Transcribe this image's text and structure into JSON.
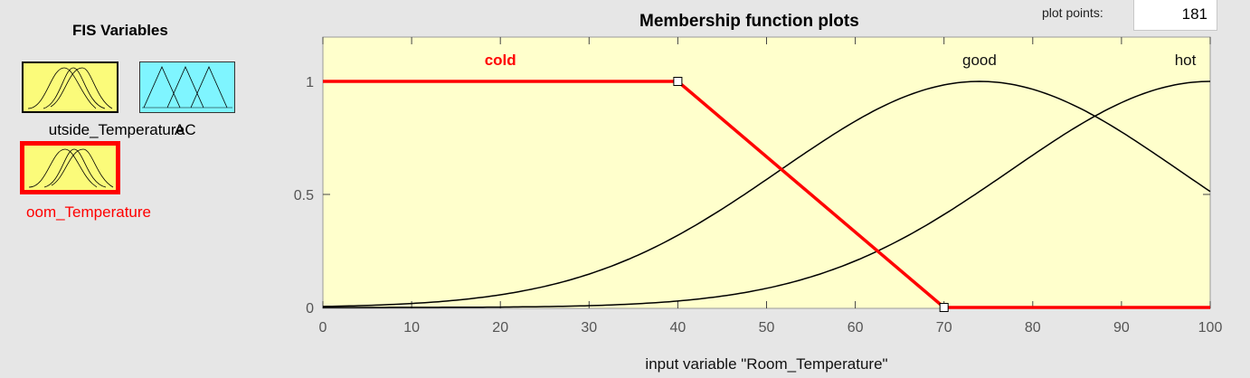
{
  "fis": {
    "title": "FIS Variables",
    "variables": [
      {
        "name": "Outside_Temperature",
        "display": "utside_Temperature",
        "kind": "input",
        "color": "#fbfb7a"
      },
      {
        "name": "AC",
        "display": "AC",
        "kind": "output",
        "color": "#7ff5ff"
      },
      {
        "name": "Room_Temperature",
        "display": "oom_Temperature",
        "kind": "input",
        "selected": true,
        "color": "#fbfb7a"
      }
    ]
  },
  "plot": {
    "title": "Membership function plots",
    "plot_points_label": "plot points:",
    "plot_points_value": "181"
  },
  "chart_data": {
    "type": "line",
    "xlabel": "input variable \"Room_Temperature\"",
    "xlim": [
      0,
      100
    ],
    "ylim": [
      0,
      1
    ],
    "xticks": [
      0,
      10,
      20,
      30,
      40,
      50,
      60,
      70,
      80,
      90,
      100
    ],
    "yticks": [
      0,
      0.5,
      1
    ],
    "ytick_labels": [
      "0",
      "0.5",
      "1"
    ],
    "background": "#ffffcc",
    "selected_color": "#ff0000",
    "series": [
      {
        "name": "cold",
        "shape": "trapezoid",
        "selected": true,
        "x": [
          0,
          40,
          70,
          100
        ],
        "y": [
          1,
          1,
          0,
          0
        ]
      },
      {
        "name": "good",
        "shape": "gaussian",
        "center": 74,
        "sigma": 22.5
      },
      {
        "name": "hot",
        "shape": "gaussian",
        "center": 100,
        "sigma": 22.5
      }
    ]
  }
}
